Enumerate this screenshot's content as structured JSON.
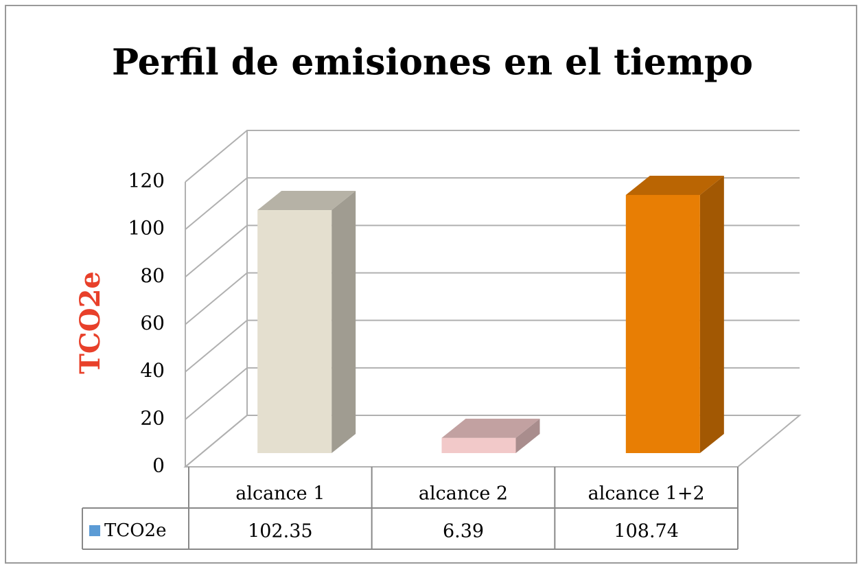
{
  "chart_data": {
    "type": "bar",
    "title": "Perfil de emisiones en el tiempo",
    "ylabel": "TCO2e",
    "categories": [
      "alcance 1",
      "alcance 2",
      "alcance 1+2"
    ],
    "series": [
      {
        "name": "TCO2e",
        "color": "#5b9bd5",
        "values": [
          102.35,
          6.39,
          108.74
        ]
      }
    ],
    "point_colors": [
      "#e4dfcf",
      "#f2c9c9",
      "#e87e04"
    ],
    "ylim": [
      0,
      120
    ],
    "yticks": [
      0,
      20,
      40,
      60,
      80,
      100,
      120
    ],
    "grid": true,
    "data_table": true
  }
}
